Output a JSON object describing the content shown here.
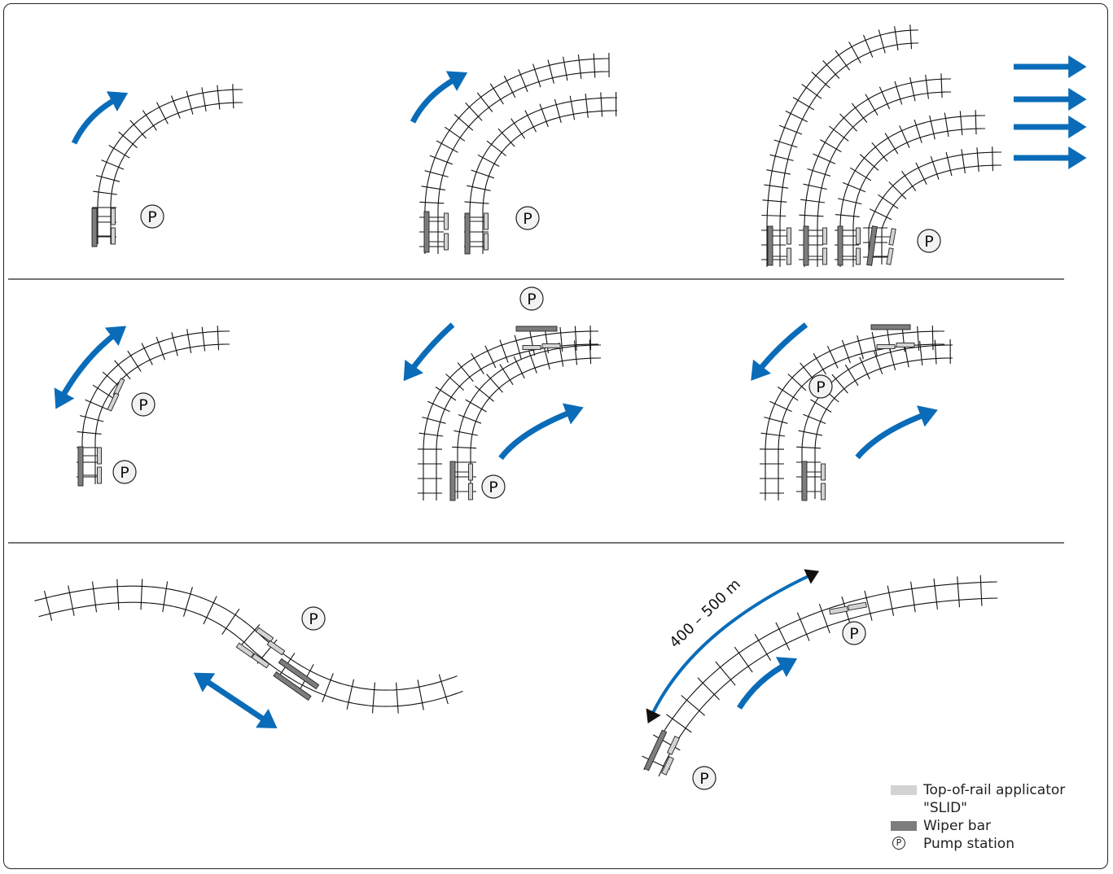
{
  "legend": {
    "applicator_label": "Top-of-rail applicator",
    "applicator_label_2": "\"SLID\"",
    "wiper_label": "Wiper bar",
    "pump_symbol": "P",
    "pump_label": "Pump station"
  },
  "distance_label": "400 – 500 m",
  "pump_symbol": "P",
  "colors": {
    "arrow_blue": "#0a6cb8",
    "applicator": "#d3d3d3",
    "wiper": "#7d7d7d",
    "line": "#111111"
  },
  "icons": {
    "pump": "circled-p-icon",
    "arrow": "curved-arrow-icon"
  }
}
